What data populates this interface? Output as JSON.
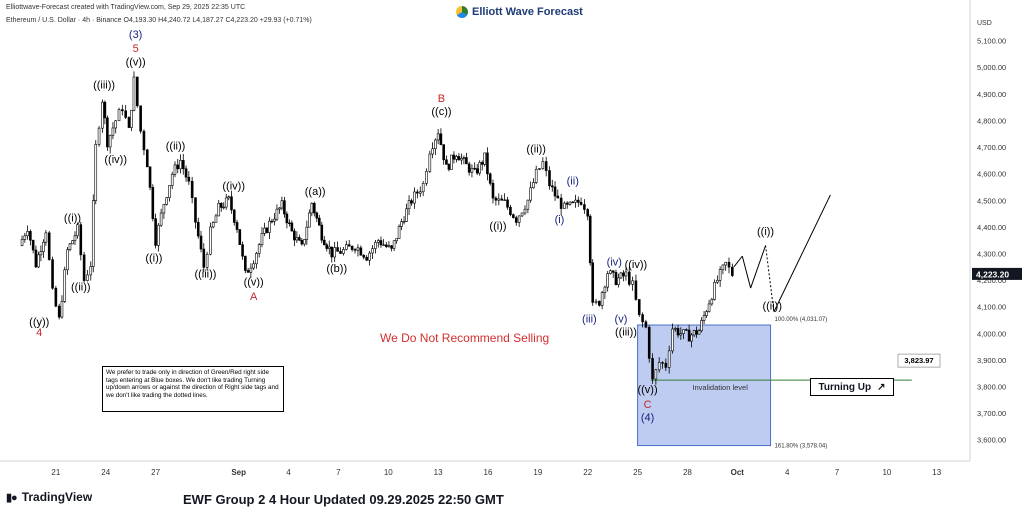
{
  "header": {
    "created_by": "Elliottwave-Forecast created with TradingView.com, Sep 29, 2025 22:35 UTC",
    "symbol_line": "Ethereum / U.S. Dollar · 4h · Binance  O4,193.30  H4,240.72  L4,187.27  C4,223.20  +29.93 (+0.71%)",
    "brand": "Elliott Wave Forecast",
    "currency": "USD"
  },
  "footer": {
    "logo_text": "TradingView",
    "title": "EWF Group 2 4 Hour Updated 09.29.2025 22:50 GMT"
  },
  "notice": "We Do Not Recommend Selling",
  "note_box": "We prefer to trade only in direction of Green/Red right side tags entering at Blue boxes. We don't like trading Turning up/down arrows or against the direction of Right side tags and we don't like trading the dotted lines.",
  "turning_up": {
    "label": "Turning Up",
    "icon": "arrow-up-right-icon"
  },
  "colors": {
    "candle": "#000000",
    "blue_box": "#b3c3f0",
    "blue_box_border": "#4a6fc9",
    "red_label": "#c62828",
    "blue_label": "#1a237e",
    "price_tag": "#131722",
    "invalid_line": "#2e7d32"
  },
  "chart_data": {
    "type": "candlestick",
    "ylim": [
      3520,
      5200
    ],
    "y_ticks": [
      3600,
      3700,
      3800,
      3900,
      4000,
      4100,
      4200,
      4300,
      4400,
      4500,
      4600,
      4700,
      4800,
      4900,
      5000,
      5100
    ],
    "y_tick_labels": [
      "3,600.00",
      "3,700.00",
      "3,800.00",
      "3,900.00",
      "4,000.00",
      "4,100.00",
      "4,200.00",
      "4,300.00",
      "4,400.00",
      "4,500.00",
      "4,600.00",
      "4,700.00",
      "4,800.00",
      "4,900.00",
      "5,000.00",
      "5,100.00"
    ],
    "x_ticks": [
      "21",
      "24",
      "27",
      "Sep",
      "4",
      "7",
      "10",
      "13",
      "16",
      "19",
      "22",
      "25",
      "28",
      "Oct",
      "4",
      "7",
      "10",
      "13"
    ],
    "x_tick_days": [
      -11,
      -8,
      -5,
      0,
      3,
      6,
      9,
      12,
      15,
      18,
      21,
      24,
      27,
      30,
      33,
      36,
      39,
      42
    ],
    "current_price": {
      "label": "4,223.20",
      "value": 4223.2
    },
    "price_path": [
      [
        -13.2,
        4330
      ],
      [
        -12.7,
        4400
      ],
      [
        -12.2,
        4260
      ],
      [
        -11.6,
        4390
      ],
      [
        -11.2,
        4150
      ],
      [
        -10.8,
        4050
      ],
      [
        -10.3,
        4310
      ],
      [
        -9.7,
        4390
      ],
      [
        -9.3,
        4200
      ],
      [
        -8.9,
        4260
      ],
      [
        -8.6,
        4700
      ],
      [
        -8.2,
        4880
      ],
      [
        -7.9,
        4720
      ],
      [
        -7.4,
        4800
      ],
      [
        -7.0,
        4850
      ],
      [
        -6.6,
        4760
      ],
      [
        -6.3,
        4950
      ],
      [
        -5.9,
        4760
      ],
      [
        -5.5,
        4640
      ],
      [
        -5.0,
        4350
      ],
      [
        -4.5,
        4490
      ],
      [
        -4.0,
        4600
      ],
      [
        -3.5,
        4650
      ],
      [
        -3.0,
        4560
      ],
      [
        -2.6,
        4420
      ],
      [
        -2.1,
        4250
      ],
      [
        -1.7,
        4380
      ],
      [
        -1.2,
        4470
      ],
      [
        -0.6,
        4500
      ],
      [
        -0.1,
        4400
      ],
      [
        0.4,
        4220
      ],
      [
        0.9,
        4280
      ],
      [
        1.4,
        4360
      ],
      [
        2.0,
        4430
      ],
      [
        2.6,
        4480
      ],
      [
        3.2,
        4380
      ],
      [
        3.8,
        4320
      ],
      [
        4.4,
        4490
      ],
      [
        5.0,
        4370
      ],
      [
        5.6,
        4300
      ],
      [
        6.3,
        4310
      ],
      [
        7.0,
        4330
      ],
      [
        7.7,
        4290
      ],
      [
        8.4,
        4350
      ],
      [
        9.2,
        4310
      ],
      [
        9.8,
        4420
      ],
      [
        10.4,
        4500
      ],
      [
        11.1,
        4560
      ],
      [
        11.5,
        4690
      ],
      [
        12.0,
        4760
      ],
      [
        12.5,
        4620
      ],
      [
        13.1,
        4680
      ],
      [
        13.7,
        4630
      ],
      [
        14.2,
        4600
      ],
      [
        14.8,
        4660
      ],
      [
        15.3,
        4500
      ],
      [
        16.0,
        4490
      ],
      [
        16.7,
        4430
      ],
      [
        17.4,
        4500
      ],
      [
        17.9,
        4600
      ],
      [
        18.3,
        4640
      ],
      [
        18.7,
        4560
      ],
      [
        19.2,
        4500
      ],
      [
        19.6,
        4470
      ],
      [
        20.1,
        4480
      ],
      [
        20.6,
        4500
      ],
      [
        21.0,
        4460
      ],
      [
        21.3,
        4100
      ],
      [
        21.7,
        4120
      ],
      [
        22.2,
        4230
      ],
      [
        22.7,
        4200
      ],
      [
        23.3,
        4220
      ],
      [
        23.7,
        4180
      ],
      [
        24.1,
        4060
      ],
      [
        24.5,
        4020
      ],
      [
        24.9,
        3820
      ],
      [
        25.3,
        3890
      ],
      [
        25.7,
        3880
      ],
      [
        26.1,
        4020
      ],
      [
        26.6,
        4000
      ],
      [
        27.1,
        3990
      ],
      [
        27.7,
        4010
      ],
      [
        28.3,
        4120
      ],
      [
        28.8,
        4200
      ],
      [
        29.3,
        4260
      ],
      [
        29.7,
        4223
      ]
    ],
    "projection": [
      [
        29.8,
        4250
      ],
      [
        30.3,
        4290
      ],
      [
        30.8,
        4170
      ],
      [
        31.7,
        4330
      ],
      [
        32.2,
        4080
      ],
      [
        35.6,
        4520
      ]
    ],
    "projection_style": [
      "solid",
      "solid",
      "solid",
      "dotted",
      "solid"
    ],
    "blue_box": {
      "from_day": 24.0,
      "to_day": 32.0,
      "y_high": 4031.07,
      "y_low": 3578.04,
      "high_label": "100.00% (4,031.07)",
      "low_label": "161.80% (3,578.04)"
    },
    "invalidation": {
      "value": 3823.97,
      "label": "Invalidation level",
      "tag": "3,823.97",
      "from_day": 24.8,
      "to_day": 40.5
    },
    "wave_labels": [
      {
        "text": "4",
        "day": -12.0,
        "price": 3990,
        "color": "red"
      },
      {
        "text": "((y))",
        "day": -12.0,
        "price": 4030,
        "color": "black"
      },
      {
        "text": "((i))",
        "day": -10.0,
        "price": 4420,
        "color": "black"
      },
      {
        "text": "((ii))",
        "day": -9.5,
        "price": 4160,
        "color": "black"
      },
      {
        "text": "((iii))",
        "day": -8.1,
        "price": 4920,
        "color": "black"
      },
      {
        "text": "((iv))",
        "day": -7.4,
        "price": 4640,
        "color": "black"
      },
      {
        "text": "(3)",
        "day": -6.2,
        "price": 5110,
        "color": "blue"
      },
      {
        "text": "5",
        "day": -6.2,
        "price": 5058,
        "color": "red"
      },
      {
        "text": "((v))",
        "day": -6.2,
        "price": 5007,
        "color": "black"
      },
      {
        "text": "((i))",
        "day": -5.1,
        "price": 4270,
        "color": "black"
      },
      {
        "text": "((ii))",
        "day": -3.8,
        "price": 4690,
        "color": "black"
      },
      {
        "text": "((iii))",
        "day": -2.0,
        "price": 4210,
        "color": "black"
      },
      {
        "text": "((iv))",
        "day": -0.3,
        "price": 4540,
        "color": "black"
      },
      {
        "text": "((v))",
        "day": 0.9,
        "price": 4180,
        "color": "black"
      },
      {
        "text": "A",
        "day": 0.9,
        "price": 4125,
        "color": "red"
      },
      {
        "text": "((a))",
        "day": 4.6,
        "price": 4520,
        "color": "black"
      },
      {
        "text": "((b))",
        "day": 5.9,
        "price": 4230,
        "color": "black"
      },
      {
        "text": "B",
        "day": 12.2,
        "price": 4870,
        "color": "red"
      },
      {
        "text": "((c))",
        "day": 12.2,
        "price": 4820,
        "color": "black"
      },
      {
        "text": "((i))",
        "day": 15.6,
        "price": 4390,
        "color": "black"
      },
      {
        "text": "((ii))",
        "day": 17.9,
        "price": 4680,
        "color": "black"
      },
      {
        "text": "(i)",
        "day": 19.3,
        "price": 4415,
        "color": "blue"
      },
      {
        "text": "(ii)",
        "day": 20.1,
        "price": 4560,
        "color": "blue"
      },
      {
        "text": "(iii)",
        "day": 21.1,
        "price": 4040,
        "color": "blue"
      },
      {
        "text": "(iv)",
        "day": 22.6,
        "price": 4255,
        "color": "blue"
      },
      {
        "text": "((iv))",
        "day": 23.9,
        "price": 4245,
        "color": "black"
      },
      {
        "text": "(v)",
        "day": 23.0,
        "price": 4040,
        "color": "blue"
      },
      {
        "text": "((iii))",
        "day": 23.3,
        "price": 3992,
        "color": "black"
      },
      {
        "text": "((v))",
        "day": 24.6,
        "price": 3775,
        "color": "black"
      },
      {
        "text": "C",
        "day": 24.6,
        "price": 3720,
        "color": "red"
      },
      {
        "text": "(4)",
        "day": 24.6,
        "price": 3670,
        "color": "blue"
      },
      {
        "text": "((i))",
        "day": 31.7,
        "price": 4370,
        "color": "black"
      },
      {
        "text": "((ii))",
        "day": 32.1,
        "price": 4090,
        "color": "black"
      }
    ]
  }
}
